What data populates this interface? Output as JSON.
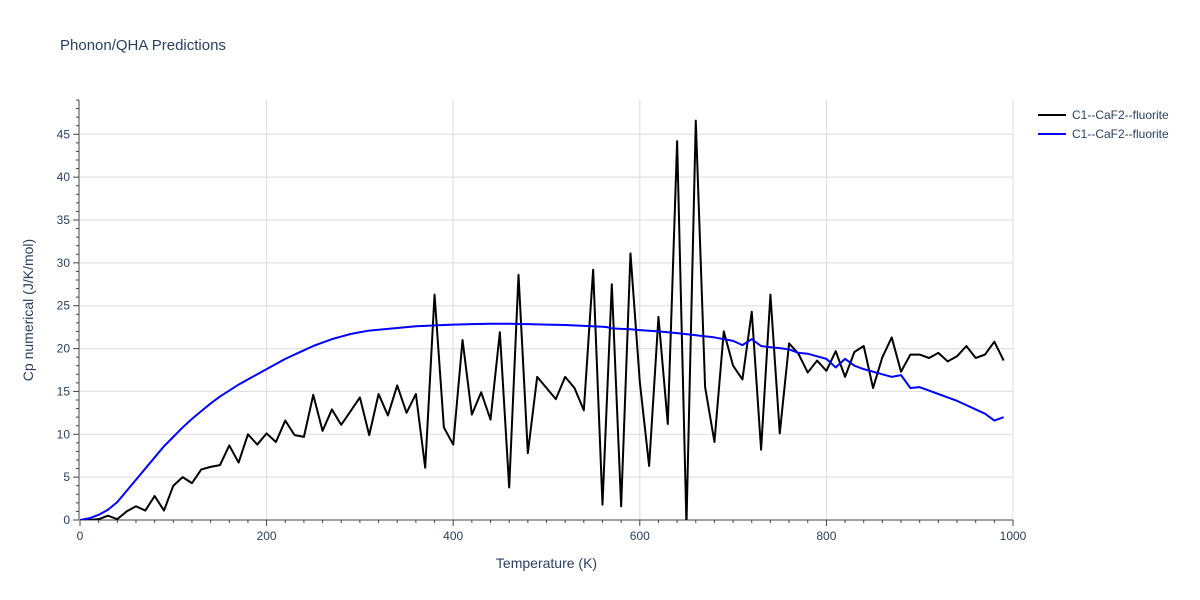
{
  "chart_data": {
    "type": "line",
    "title": "Phonon/QHA Predictions",
    "xlabel": "Temperature (K)",
    "ylabel": "Cp numerical (J/K/mol)",
    "xlim": [
      0,
      1000
    ],
    "ylim": [
      0,
      49
    ],
    "xticks": [
      0,
      200,
      400,
      600,
      800,
      1000
    ],
    "yticks": [
      0,
      5,
      10,
      15,
      20,
      25,
      30,
      35,
      40,
      45
    ],
    "grid": true,
    "legend_position": "top-right",
    "series": [
      {
        "name": "C1--CaF2--fluorite",
        "color": "#000000",
        "x": [
          0,
          10,
          20,
          30,
          40,
          50,
          60,
          70,
          80,
          90,
          100,
          110,
          120,
          130,
          140,
          150,
          160,
          170,
          180,
          190,
          200,
          210,
          220,
          230,
          240,
          250,
          260,
          270,
          280,
          290,
          300,
          310,
          320,
          330,
          340,
          350,
          360,
          370,
          380,
          390,
          400,
          410,
          420,
          430,
          440,
          450,
          460,
          470,
          480,
          490,
          500,
          510,
          520,
          530,
          540,
          550,
          560,
          570,
          580,
          590,
          600,
          610,
          620,
          630,
          640,
          650,
          660,
          670,
          680,
          690,
          700,
          710,
          720,
          730,
          740,
          750,
          760,
          770,
          780,
          790,
          800,
          810,
          820,
          830,
          840,
          850,
          860,
          870,
          880,
          890,
          900,
          910,
          920,
          930,
          940,
          950,
          960,
          970,
          980,
          990
        ],
        "values": [
          0,
          0,
          0.1,
          0.5,
          0.1,
          1.0,
          1.6,
          1.1,
          2.8,
          1.1,
          4.0,
          5.0,
          4.3,
          5.9,
          6.2,
          6.4,
          8.7,
          6.7,
          10.0,
          8.8,
          10.1,
          9.1,
          11.6,
          9.9,
          9.7,
          14.6,
          10.4,
          12.9,
          11.1,
          12.7,
          14.3,
          9.9,
          14.7,
          12.2,
          15.7,
          12.5,
          14.7,
          6.1,
          26.3,
          10.8,
          8.8,
          21.0,
          12.3,
          14.9,
          11.7,
          21.9,
          3.8,
          28.6,
          7.8,
          16.7,
          15.4,
          14.1,
          16.7,
          15.4,
          12.8,
          29.2,
          1.8,
          27.5,
          1.6,
          31.1,
          16.1,
          6.3,
          23.7,
          11.2,
          44.2,
          -0.6,
          46.6,
          15.5,
          9.1,
          22.0,
          18.0,
          16.4,
          24.3,
          8.2,
          26.3,
          10.1,
          20.6,
          19.4,
          17.2,
          18.6,
          17.4,
          19.7,
          16.7,
          19.6,
          20.3,
          15.4,
          19.0,
          21.3,
          17.3,
          19.3,
          19.3,
          18.9,
          19.5,
          18.5,
          19.1,
          20.3,
          18.9,
          19.3,
          20.8,
          18.6
        ]
      },
      {
        "name": "C1--CaF2--fluorite",
        "color": "#0000ff",
        "x": [
          0,
          10,
          20,
          30,
          40,
          50,
          60,
          70,
          80,
          90,
          100,
          110,
          120,
          130,
          140,
          150,
          160,
          170,
          180,
          190,
          200,
          210,
          220,
          230,
          240,
          250,
          260,
          270,
          280,
          290,
          300,
          310,
          320,
          330,
          340,
          350,
          360,
          370,
          380,
          390,
          400,
          420,
          440,
          460,
          480,
          500,
          520,
          540,
          560,
          565,
          570,
          580,
          590,
          600,
          620,
          640,
          660,
          680,
          690,
          700,
          710,
          720,
          730,
          740,
          750,
          760,
          770,
          780,
          790,
          800,
          810,
          820,
          830,
          840,
          850,
          860,
          870,
          880,
          890,
          900,
          910,
          920,
          930,
          940,
          950,
          960,
          970,
          980,
          990
        ],
        "values": [
          0,
          0.2,
          0.6,
          1.2,
          2.1,
          3.4,
          4.7,
          6.0,
          7.3,
          8.6,
          9.7,
          10.8,
          11.8,
          12.7,
          13.6,
          14.4,
          15.1,
          15.8,
          16.4,
          17.0,
          17.6,
          18.2,
          18.8,
          19.3,
          19.8,
          20.3,
          20.7,
          21.1,
          21.4,
          21.7,
          21.9,
          22.1,
          22.2,
          22.3,
          22.4,
          22.5,
          22.6,
          22.65,
          22.7,
          22.75,
          22.8,
          22.85,
          22.9,
          22.9,
          22.85,
          22.8,
          22.75,
          22.65,
          22.55,
          22.5,
          22.35,
          22.3,
          22.25,
          22.15,
          22.0,
          21.8,
          21.55,
          21.3,
          21.1,
          20.9,
          20.4,
          21.1,
          20.3,
          20.15,
          20.05,
          19.9,
          19.5,
          19.4,
          19.1,
          18.8,
          17.8,
          18.8,
          18.0,
          17.6,
          17.3,
          17.0,
          16.7,
          16.9,
          15.4,
          15.5,
          15.1,
          14.7,
          14.3,
          13.9,
          13.4,
          12.9,
          12.4,
          11.6,
          12.0
        ]
      }
    ]
  }
}
